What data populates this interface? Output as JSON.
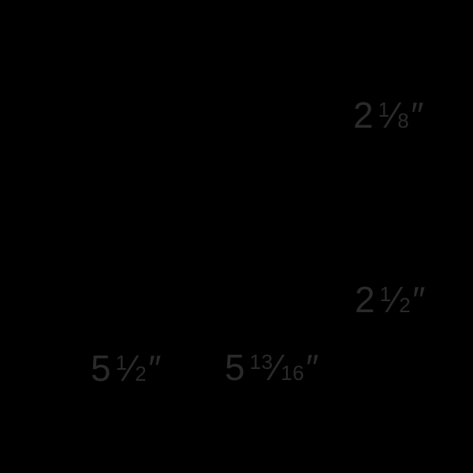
{
  "diagram": {
    "background_color": "#000000",
    "text_color": "#2b292b",
    "fraction_slash": "⁄",
    "labels": [
      {
        "name": "dimension-top-right",
        "whole": "2",
        "numerator": "1",
        "denominator": "8",
        "unit": "″"
      },
      {
        "name": "dimension-middle-right",
        "whole": "2",
        "numerator": "1",
        "denominator": "2",
        "unit": "″"
      },
      {
        "name": "dimension-bottom-left",
        "whole": "5",
        "numerator": "1",
        "denominator": "2",
        "unit": "″"
      },
      {
        "name": "dimension-bottom-center",
        "whole": "5",
        "numerator": "13",
        "denominator": "16",
        "unit": "″"
      }
    ]
  }
}
